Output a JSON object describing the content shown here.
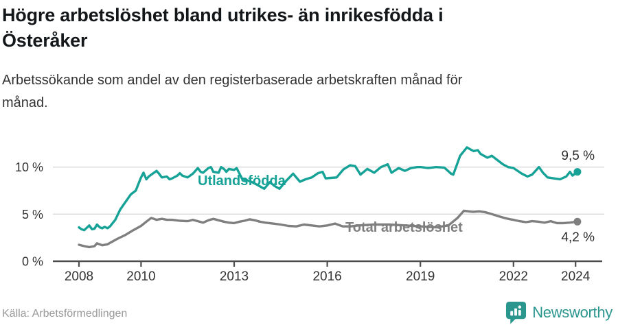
{
  "header": {
    "title_lines": [
      "Högre arbetslöshet bland utrikes- än inrikesfödda i",
      "Österåker"
    ],
    "subtitle_lines": [
      "Arbetssökande som andel av den registerbaserade arbetskraften månad för",
      "månad."
    ]
  },
  "footer": {
    "source": "Källa: Arbetsförmedlingen",
    "brand": "Newsworthy",
    "brand_color": "#2b968e"
  },
  "chart_data": {
    "type": "line",
    "title": "Högre arbetslöshet bland utrikes- än inrikesfödda i Österåker",
    "subtitle": "Arbetssökande som andel av den registerbaserade arbetskraften månad för månad.",
    "unit": "%",
    "grid": "horizontal",
    "legend_position": "inline-labels",
    "x_axis": {
      "ticks": [
        2008,
        2010,
        2013,
        2016,
        2019,
        2022,
        2024
      ],
      "range": [
        2007.2,
        2024.9
      ]
    },
    "y_axis": {
      "tick_labels": [
        "0 %",
        "5 %",
        "10 %"
      ],
      "tick_values": [
        0,
        5,
        10
      ],
      "range": [
        0,
        13
      ]
    },
    "series": [
      {
        "name": "Utlandsfödda",
        "color": "#16a296",
        "end_label": "9,5 %",
        "end_value": 9.5,
        "points": [
          [
            2008.0,
            3.6
          ],
          [
            2008.08,
            3.4
          ],
          [
            2008.17,
            3.3
          ],
          [
            2008.25,
            3.55
          ],
          [
            2008.33,
            3.8
          ],
          [
            2008.42,
            3.4
          ],
          [
            2008.5,
            3.45
          ],
          [
            2008.58,
            3.9
          ],
          [
            2008.67,
            3.6
          ],
          [
            2008.75,
            3.5
          ],
          [
            2008.83,
            3.65
          ],
          [
            2008.92,
            3.5
          ],
          [
            2009.0,
            3.7
          ],
          [
            2009.17,
            4.4
          ],
          [
            2009.33,
            5.5
          ],
          [
            2009.5,
            6.3
          ],
          [
            2009.67,
            7.1
          ],
          [
            2009.83,
            7.5
          ],
          [
            2010.0,
            8.9
          ],
          [
            2010.08,
            9.4
          ],
          [
            2010.17,
            8.7
          ],
          [
            2010.25,
            9.0
          ],
          [
            2010.33,
            9.2
          ],
          [
            2010.5,
            9.6
          ],
          [
            2010.58,
            9.3
          ],
          [
            2010.67,
            8.9
          ],
          [
            2010.83,
            9.0
          ],
          [
            2010.92,
            8.7
          ],
          [
            2011.0,
            8.8
          ],
          [
            2011.17,
            9.1
          ],
          [
            2011.25,
            9.35
          ],
          [
            2011.33,
            9.1
          ],
          [
            2011.5,
            8.9
          ],
          [
            2011.67,
            9.3
          ],
          [
            2011.75,
            9.6
          ],
          [
            2011.83,
            9.9
          ],
          [
            2011.92,
            9.5
          ],
          [
            2012.0,
            9.4
          ],
          [
            2012.17,
            9.9
          ],
          [
            2012.25,
            10.0
          ],
          [
            2012.33,
            9.5
          ],
          [
            2012.5,
            9.4
          ],
          [
            2012.58,
            10.0
          ],
          [
            2012.67,
            9.8
          ],
          [
            2012.75,
            9.5
          ],
          [
            2012.83,
            9.8
          ],
          [
            2013.0,
            9.7
          ],
          [
            2013.08,
            9.9
          ],
          [
            2013.25,
            8.8
          ],
          [
            2013.42,
            8.6
          ],
          [
            2013.58,
            8.4
          ],
          [
            2013.75,
            8.1
          ],
          [
            2013.97,
            7.7
          ],
          [
            2014.15,
            8.4
          ],
          [
            2014.3,
            8.0
          ],
          [
            2014.46,
            7.7
          ],
          [
            2014.68,
            8.55
          ],
          [
            2014.9,
            9.3
          ],
          [
            2015.12,
            8.45
          ],
          [
            2015.3,
            8.7
          ],
          [
            2015.5,
            8.9
          ],
          [
            2015.7,
            9.35
          ],
          [
            2015.85,
            9.5
          ],
          [
            2015.95,
            8.8
          ],
          [
            2016.1,
            8.85
          ],
          [
            2016.3,
            8.9
          ],
          [
            2016.52,
            9.75
          ],
          [
            2016.74,
            10.2
          ],
          [
            2016.9,
            10.1
          ],
          [
            2017.07,
            9.2
          ],
          [
            2017.29,
            9.8
          ],
          [
            2017.51,
            9.4
          ],
          [
            2017.73,
            10.0
          ],
          [
            2017.95,
            10.3
          ],
          [
            2018.07,
            9.4
          ],
          [
            2018.3,
            9.9
          ],
          [
            2018.5,
            9.6
          ],
          [
            2018.7,
            9.9
          ],
          [
            2018.9,
            10.0
          ],
          [
            2019.02,
            10.0
          ],
          [
            2019.25,
            9.9
          ],
          [
            2019.5,
            10.0
          ],
          [
            2019.77,
            9.95
          ],
          [
            2019.99,
            9.3
          ],
          [
            2020.06,
            9.2
          ],
          [
            2020.28,
            11.2
          ],
          [
            2020.5,
            12.1
          ],
          [
            2020.6,
            11.9
          ],
          [
            2020.72,
            11.7
          ],
          [
            2020.85,
            11.8
          ],
          [
            2020.94,
            11.4
          ],
          [
            2021.16,
            11.0
          ],
          [
            2021.3,
            11.2
          ],
          [
            2021.5,
            10.7
          ],
          [
            2021.66,
            10.3
          ],
          [
            2021.83,
            10.0
          ],
          [
            2022.0,
            9.9
          ],
          [
            2022.27,
            9.3
          ],
          [
            2022.45,
            9.0
          ],
          [
            2022.6,
            9.2
          ],
          [
            2022.82,
            10.0
          ],
          [
            2022.95,
            9.4
          ],
          [
            2023.1,
            8.9
          ],
          [
            2023.3,
            8.8
          ],
          [
            2023.5,
            8.7
          ],
          [
            2023.7,
            9.0
          ],
          [
            2023.82,
            9.5
          ],
          [
            2023.9,
            9.1
          ],
          [
            2024.06,
            9.5
          ]
        ]
      },
      {
        "name": "Total arbetslöshet",
        "color": "#7f7f7f",
        "end_label": "4,2 %",
        "end_value": 4.2,
        "points": [
          [
            2008.0,
            1.75
          ],
          [
            2008.17,
            1.6
          ],
          [
            2008.33,
            1.5
          ],
          [
            2008.5,
            1.6
          ],
          [
            2008.58,
            1.9
          ],
          [
            2008.75,
            1.7
          ],
          [
            2008.92,
            1.8
          ],
          [
            2009.0,
            1.95
          ],
          [
            2009.25,
            2.4
          ],
          [
            2009.5,
            2.8
          ],
          [
            2009.75,
            3.3
          ],
          [
            2010.0,
            3.75
          ],
          [
            2010.17,
            4.2
          ],
          [
            2010.33,
            4.6
          ],
          [
            2010.5,
            4.4
          ],
          [
            2010.67,
            4.5
          ],
          [
            2010.83,
            4.4
          ],
          [
            2011.0,
            4.4
          ],
          [
            2011.25,
            4.3
          ],
          [
            2011.5,
            4.25
          ],
          [
            2011.67,
            4.4
          ],
          [
            2011.83,
            4.25
          ],
          [
            2012.0,
            4.1
          ],
          [
            2012.17,
            4.35
          ],
          [
            2012.33,
            4.5
          ],
          [
            2012.5,
            4.35
          ],
          [
            2012.67,
            4.2
          ],
          [
            2012.83,
            4.1
          ],
          [
            2013.0,
            4.05
          ],
          [
            2013.17,
            4.2
          ],
          [
            2013.33,
            4.3
          ],
          [
            2013.5,
            4.45
          ],
          [
            2013.67,
            4.35
          ],
          [
            2013.83,
            4.2
          ],
          [
            2014.0,
            4.1
          ],
          [
            2014.25,
            4.0
          ],
          [
            2014.5,
            3.9
          ],
          [
            2014.75,
            3.75
          ],
          [
            2015.0,
            3.7
          ],
          [
            2015.25,
            3.9
          ],
          [
            2015.5,
            3.8
          ],
          [
            2015.75,
            3.7
          ],
          [
            2016.0,
            3.8
          ],
          [
            2016.25,
            4.0
          ],
          [
            2016.5,
            3.7
          ],
          [
            2016.75,
            3.7
          ],
          [
            2017.0,
            3.8
          ],
          [
            2017.5,
            3.9
          ],
          [
            2018.0,
            3.9
          ],
          [
            2018.5,
            3.8
          ],
          [
            2019.0,
            3.7
          ],
          [
            2019.5,
            3.6
          ],
          [
            2019.9,
            3.8
          ],
          [
            2020.2,
            4.6
          ],
          [
            2020.4,
            5.35
          ],
          [
            2020.55,
            5.3
          ],
          [
            2020.7,
            5.25
          ],
          [
            2020.9,
            5.3
          ],
          [
            2021.1,
            5.2
          ],
          [
            2021.3,
            5.0
          ],
          [
            2021.5,
            4.8
          ],
          [
            2021.7,
            4.6
          ],
          [
            2021.9,
            4.45
          ],
          [
            2022.0,
            4.4
          ],
          [
            2022.2,
            4.25
          ],
          [
            2022.4,
            4.15
          ],
          [
            2022.6,
            4.25
          ],
          [
            2022.8,
            4.2
          ],
          [
            2023.0,
            4.1
          ],
          [
            2023.2,
            4.25
          ],
          [
            2023.4,
            4.05
          ],
          [
            2023.6,
            4.05
          ],
          [
            2023.8,
            4.1
          ],
          [
            2024.06,
            4.2
          ]
        ]
      }
    ],
    "colors": {
      "grid": "#d9d9d9",
      "axis": "#4d4d4d",
      "tick_text": "#333333",
      "annotation_text": "#2b2b2b"
    }
  }
}
